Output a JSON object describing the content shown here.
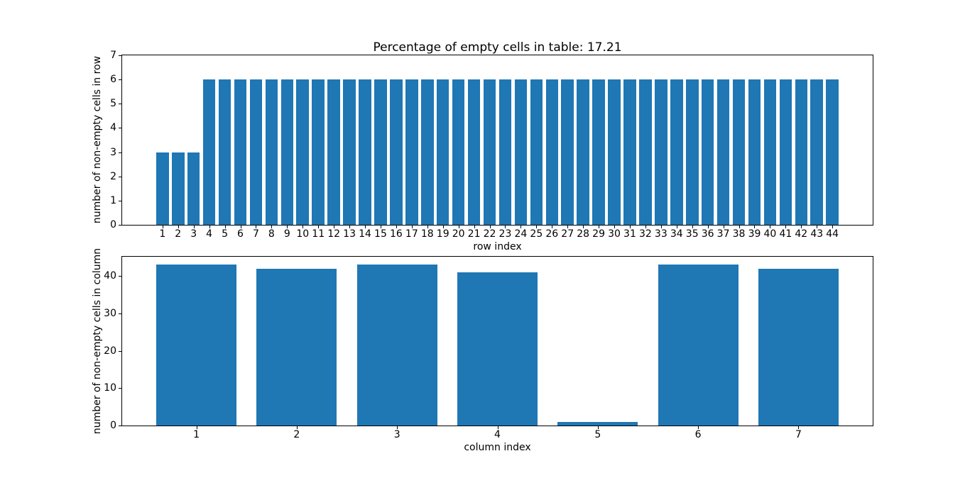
{
  "figure": {
    "background_color": "#ffffff",
    "bar_color": "#1f77b4",
    "spine_color": "#000000"
  },
  "chart_data": [
    {
      "type": "bar",
      "title": "Percentage of empty cells in table: 17.21",
      "xlabel": "row index",
      "ylabel": "number of non-empty cells in row",
      "categories": [
        "1",
        "2",
        "3",
        "4",
        "5",
        "6",
        "7",
        "8",
        "9",
        "10",
        "11",
        "12",
        "13",
        "14",
        "15",
        "16",
        "17",
        "18",
        "19",
        "20",
        "21",
        "22",
        "23",
        "24",
        "25",
        "26",
        "27",
        "28",
        "29",
        "30",
        "31",
        "32",
        "33",
        "34",
        "35",
        "36",
        "37",
        "38",
        "39",
        "40",
        "41",
        "42",
        "43",
        "44"
      ],
      "values": [
        3,
        3,
        3,
        6,
        6,
        6,
        6,
        6,
        6,
        6,
        6,
        6,
        6,
        6,
        6,
        6,
        6,
        6,
        6,
        6,
        6,
        6,
        6,
        6,
        6,
        6,
        6,
        6,
        6,
        6,
        6,
        6,
        6,
        6,
        6,
        6,
        6,
        6,
        6,
        6,
        6,
        6,
        6,
        6
      ],
      "xlim": [
        -1.59,
        46.59
      ],
      "ylim": [
        0,
        7
      ],
      "yticks": [
        0,
        1,
        2,
        3,
        4,
        5,
        6,
        7
      ],
      "bar_width": 0.8,
      "grid": false,
      "legend": null
    },
    {
      "type": "bar",
      "title": "",
      "xlabel": "column index",
      "ylabel": "number of non-empty cells in column",
      "categories": [
        "1",
        "2",
        "3",
        "4",
        "5",
        "6",
        "7"
      ],
      "values": [
        43,
        42,
        43,
        41,
        1,
        43,
        42
      ],
      "xlim": [
        0.26,
        7.74
      ],
      "ylim": [
        0,
        45.15
      ],
      "yticks": [
        0,
        10,
        20,
        30,
        40
      ],
      "bar_width": 0.8,
      "grid": false,
      "legend": null
    }
  ]
}
